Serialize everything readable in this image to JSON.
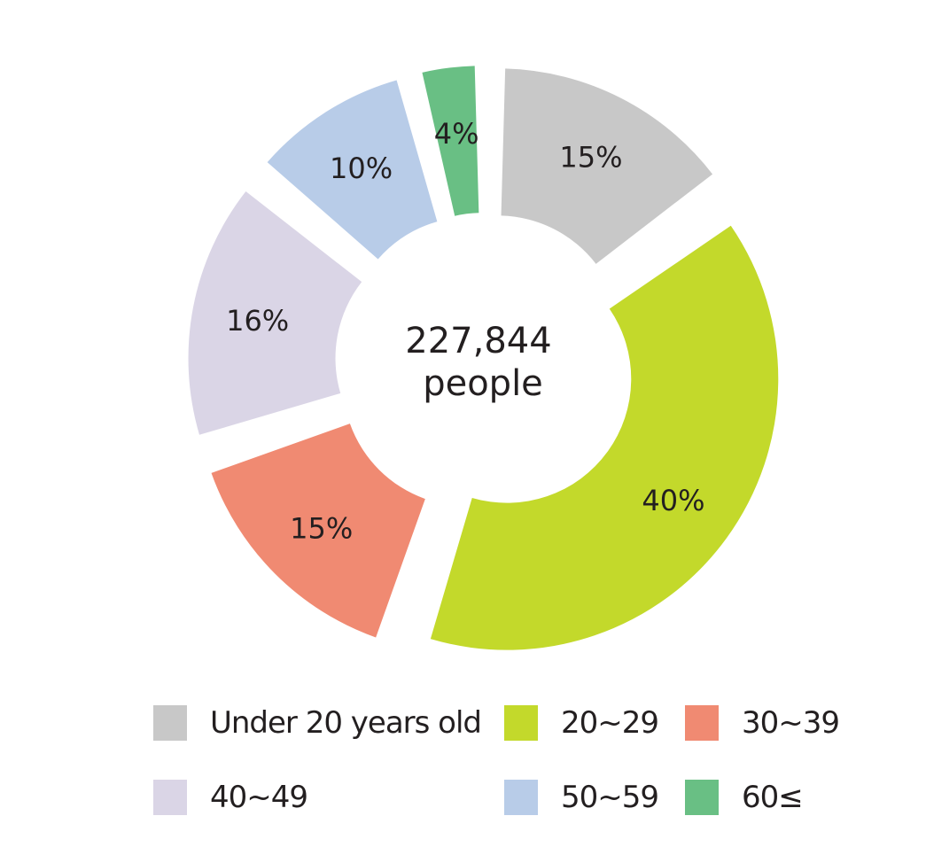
{
  "chart_data": {
    "type": "pie",
    "style": "donut",
    "center_label": {
      "line1": "227,844",
      "line2": "people"
    },
    "slices": [
      {
        "category": "Under 20 years old",
        "value": 15,
        "label": "15%",
        "color": "#c8c8c8"
      },
      {
        "category": "20~29",
        "value": 40,
        "label": "40%",
        "color": "#c3d92b"
      },
      {
        "category": "30~39",
        "value": 15,
        "label": "15%",
        "color": "#f08a72"
      },
      {
        "category": "40~49",
        "value": 16,
        "label": "16%",
        "color": "#dad5e6"
      },
      {
        "category": "50~59",
        "value": 10,
        "label": "10%",
        "color": "#b8cce8"
      },
      {
        "category": "60≤",
        "value": 4,
        "label": "4%",
        "color": "#69bf84"
      }
    ],
    "legend": {
      "placement": "bottom",
      "items": [
        {
          "label": "Under 20 years old",
          "color": "#c8c8c8"
        },
        {
          "label": "20~29",
          "color": "#c3d92b"
        },
        {
          "label": "30~39",
          "color": "#f08a72"
        },
        {
          "label": "40~49",
          "color": "#dad5e6"
        },
        {
          "label": "50~59",
          "color": "#b8cce8"
        },
        {
          "label": "60≤",
          "color": "#69bf84"
        }
      ]
    }
  }
}
